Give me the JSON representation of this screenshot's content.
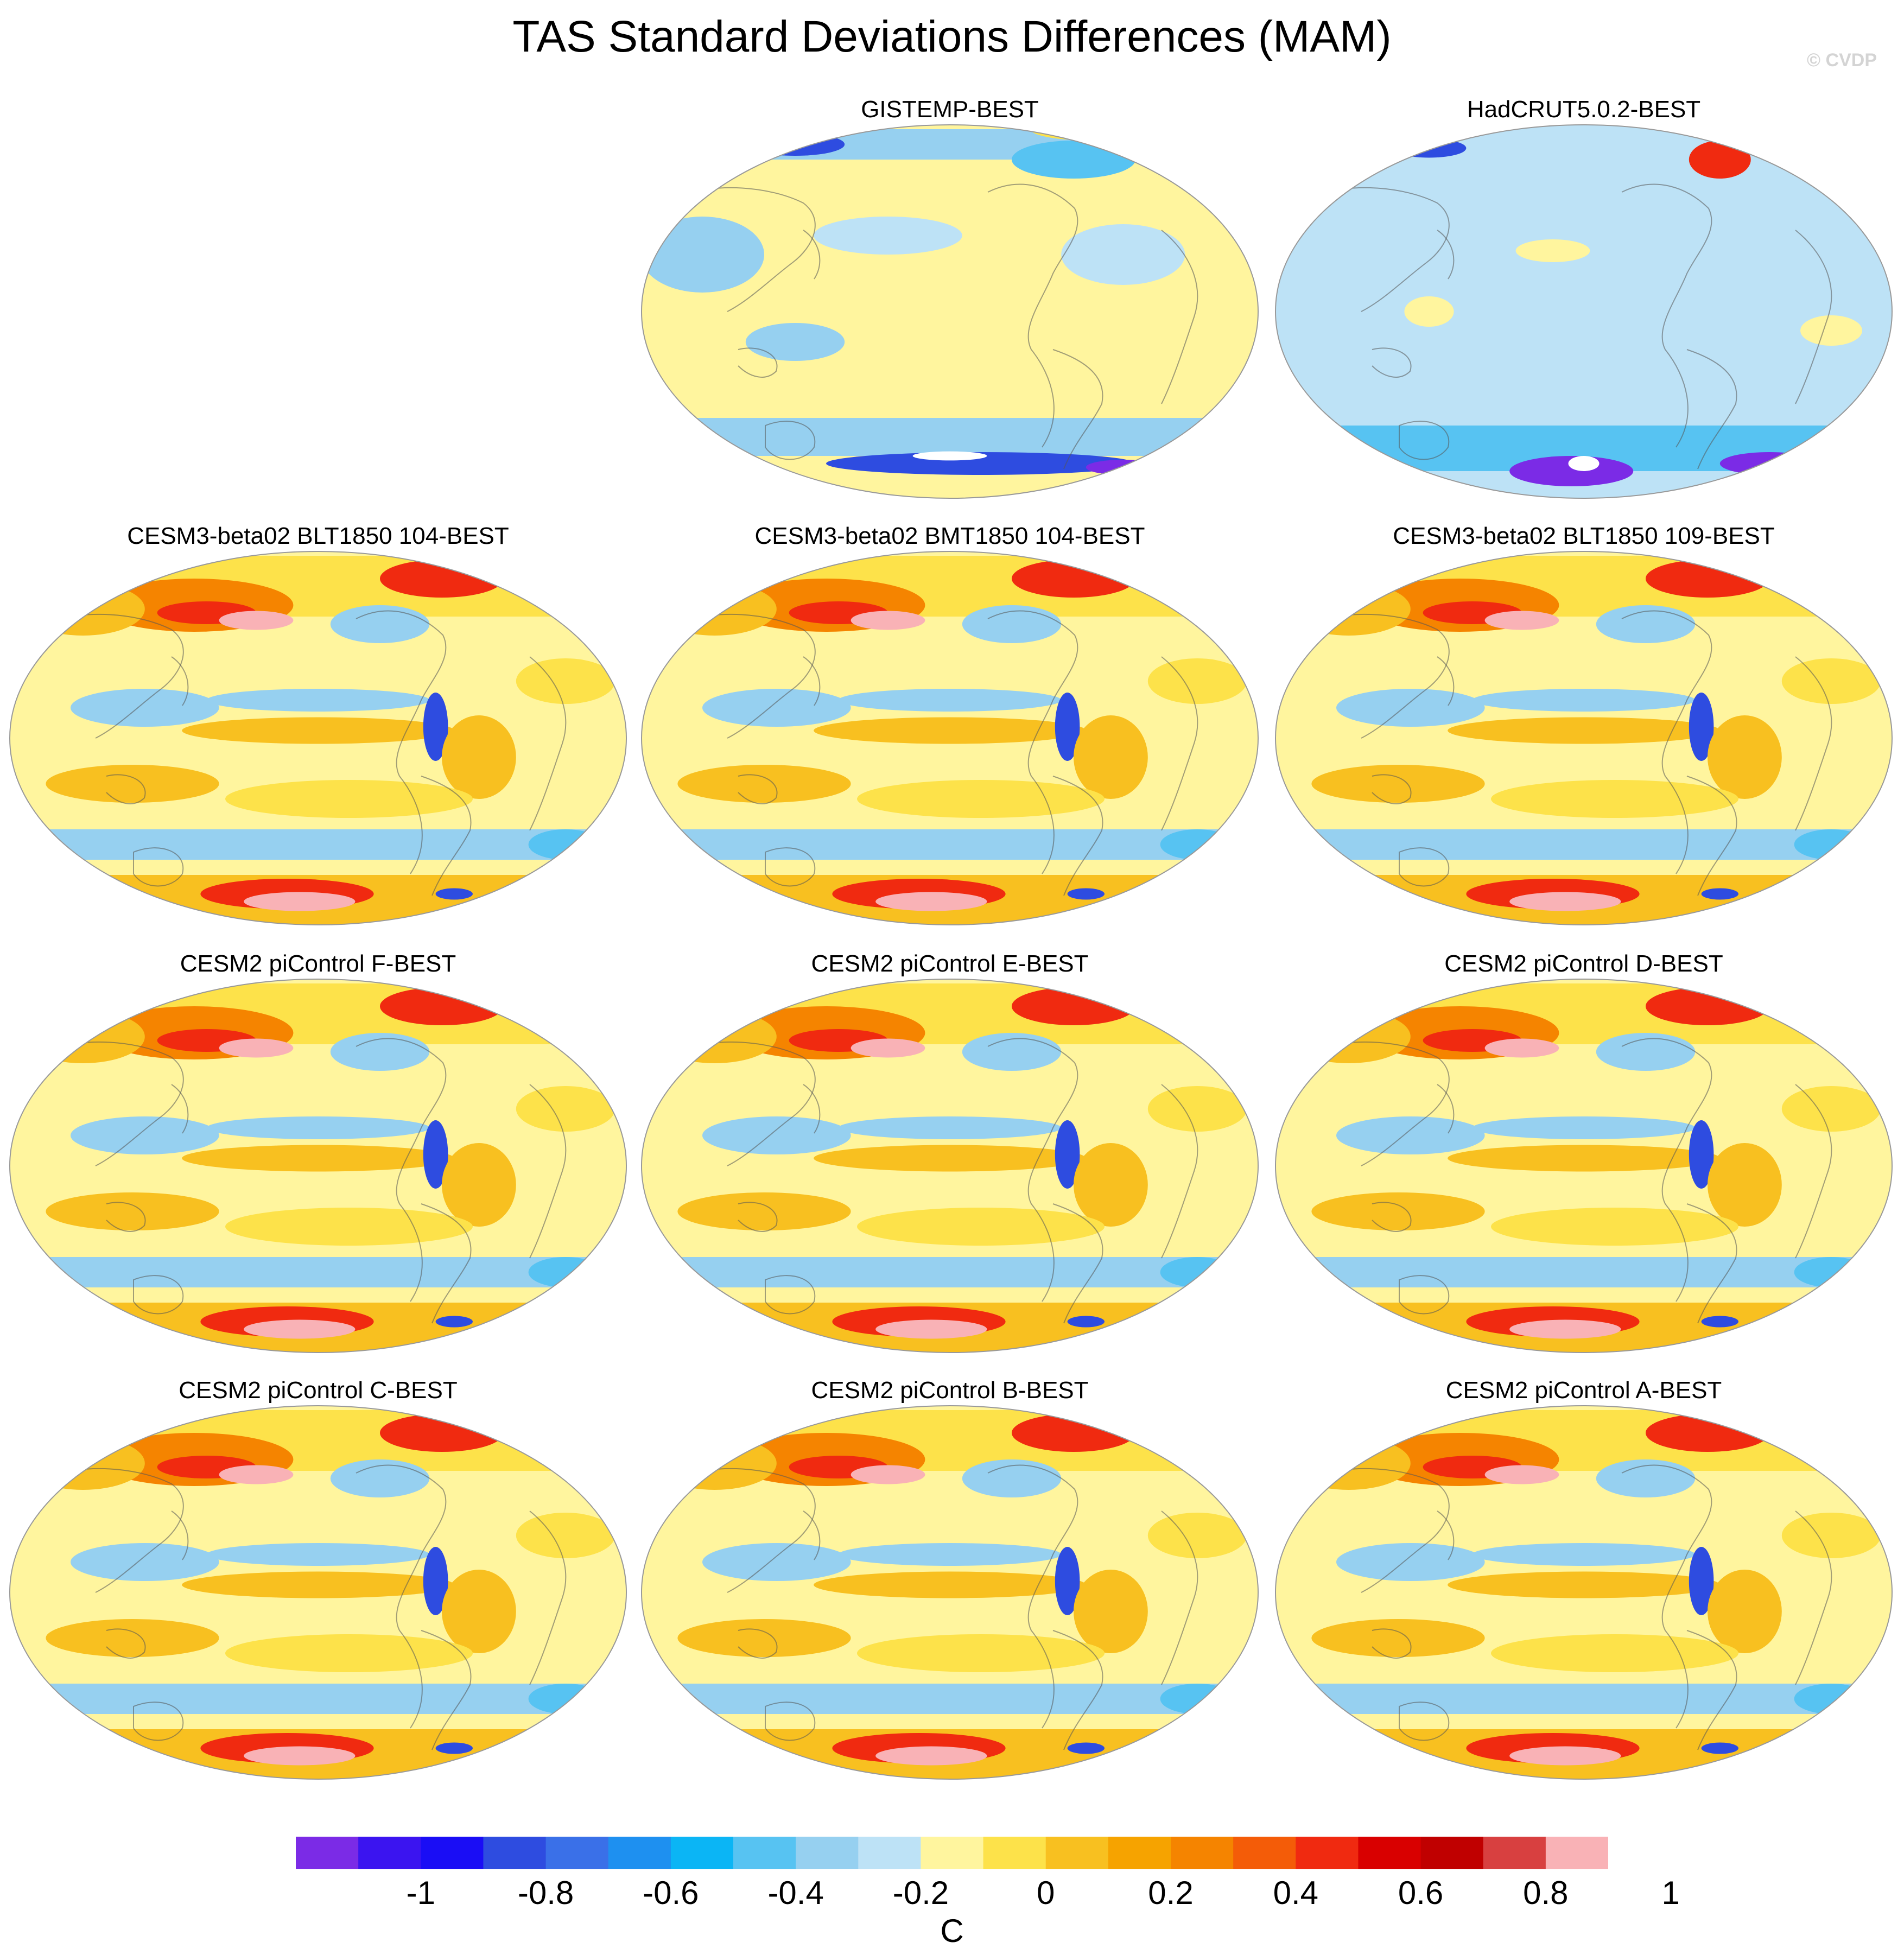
{
  "title": "TAS Standard Deviations Differences (MAM)",
  "copyright": "© CVDP",
  "panels": [
    {
      "title": "GISTEMP-BEST",
      "style": "obs-gistemp"
    },
    {
      "title": "HadCRUT5.0.2-BEST",
      "style": "obs-hadcrut"
    },
    {
      "title": "CESM3-beta02 BLT1850 104-BEST",
      "style": "model"
    },
    {
      "title": "CESM3-beta02 BMT1850 104-BEST",
      "style": "model"
    },
    {
      "title": "CESM3-beta02 BLT1850 109-BEST",
      "style": "model"
    },
    {
      "title": "CESM2 piControl F-BEST",
      "style": "model"
    },
    {
      "title": "CESM2 piControl E-BEST",
      "style": "model"
    },
    {
      "title": "CESM2 piControl D-BEST",
      "style": "model"
    },
    {
      "title": "CESM2 piControl C-BEST",
      "style": "model"
    },
    {
      "title": "CESM2 piControl B-BEST",
      "style": "model"
    },
    {
      "title": "CESM2 piControl A-BEST",
      "style": "model"
    }
  ],
  "colorbar": {
    "unit": "C",
    "colors": [
      "#7b2be6",
      "#3b14f0",
      "#1a0df5",
      "#2e4ce0",
      "#3a70e8",
      "#1e90f0",
      "#0bb5f5",
      "#57c3f2",
      "#96d0f0",
      "#bde2f6",
      "#fff59e",
      "#fde24a",
      "#f8c020",
      "#f6a300",
      "#f58400",
      "#f45c08",
      "#f02a10",
      "#d90000",
      "#c00000",
      "#d84040",
      "#f9b2b6"
    ],
    "tick_values": [
      "-1",
      "-0.8",
      "-0.6",
      "-0.4",
      "-0.2",
      "0",
      "0.2",
      "0.4",
      "0.6",
      "0.8",
      "1"
    ]
  },
  "palette": {
    "light_blue": "#bde2f6",
    "blue": "#96d0f0",
    "mid_blue": "#57c3f2",
    "deep_blue": "#2e4ce0",
    "purple": "#7b2be6",
    "light_yellow": "#fff59e",
    "yellow": "#fde24a",
    "orange": "#f8c020",
    "dark_orange": "#f58400",
    "red": "#f02a10",
    "dark_red": "#c00000",
    "pink": "#f9b2b6",
    "land_outline": "#555555"
  }
}
